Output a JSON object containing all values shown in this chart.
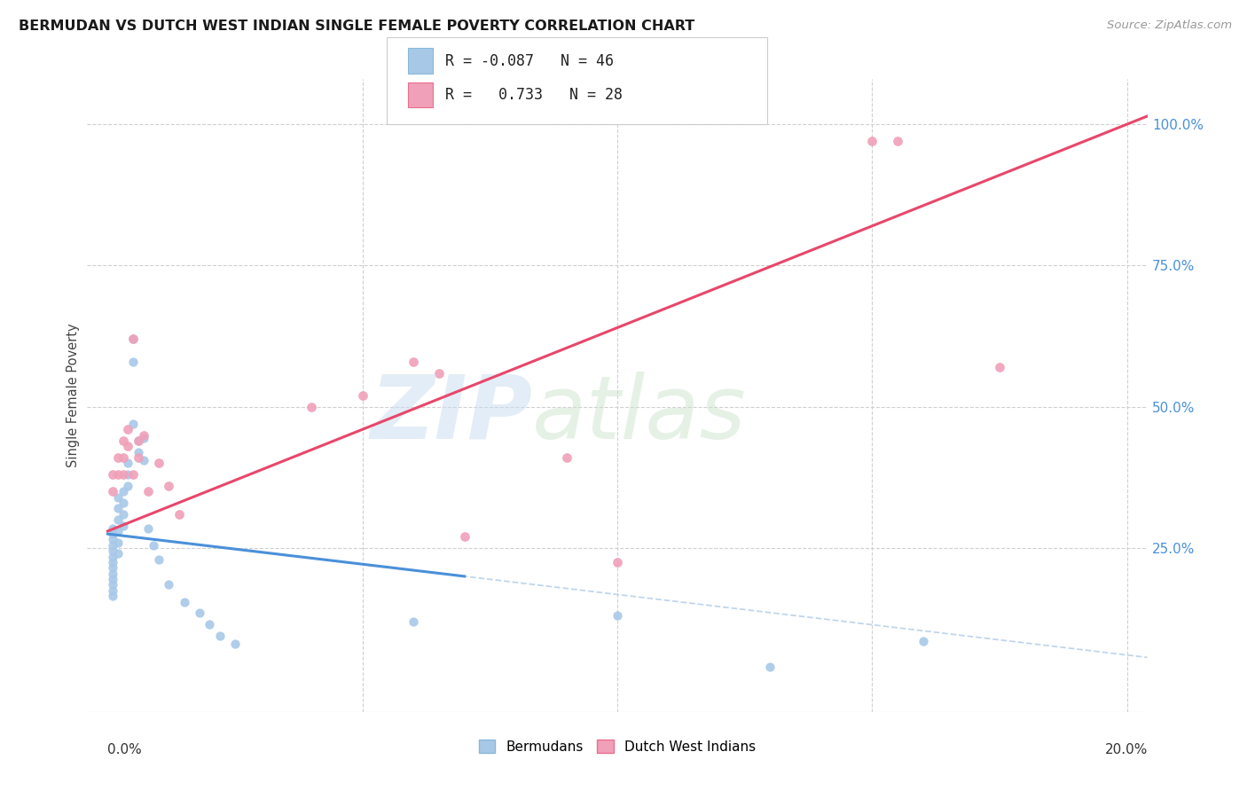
{
  "title": "BERMUDAN VS DUTCH WEST INDIAN SINGLE FEMALE POVERTY CORRELATION CHART",
  "source": "Source: ZipAtlas.com",
  "ylabel": "Single Female Poverty",
  "background_color": "#ffffff",
  "bermudan_scatter_color": "#a8c8e8",
  "dutch_scatter_color": "#f0a0b8",
  "bermudan_line_color": "#4a90d9",
  "dutch_line_color": "#e8476a",
  "bermudan_dash_color": "#b0cce8",
  "grid_color": "#d0d0d0",
  "right_tick_color": "#4a90d9",
  "berm_R": "-0.087",
  "berm_N": "46",
  "dutch_R": "0.733",
  "dutch_N": "28",
  "bermudans_x": [
    0.001,
    0.001,
    0.001,
    0.001,
    0.001,
    0.001,
    0.001,
    0.001,
    0.001,
    0.001,
    0.001,
    0.001,
    0.001,
    0.002,
    0.002,
    0.002,
    0.002,
    0.002,
    0.002,
    0.003,
    0.003,
    0.003,
    0.003,
    0.004,
    0.004,
    0.004,
    0.005,
    0.005,
    0.005,
    0.006,
    0.006,
    0.007,
    0.007,
    0.008,
    0.009,
    0.01,
    0.012,
    0.015,
    0.018,
    0.02,
    0.022,
    0.025,
    0.06,
    0.1,
    0.13,
    0.16
  ],
  "bermudans_y": [
    0.285,
    0.275,
    0.265,
    0.255,
    0.245,
    0.235,
    0.225,
    0.215,
    0.205,
    0.195,
    0.185,
    0.175,
    0.165,
    0.34,
    0.32,
    0.3,
    0.28,
    0.26,
    0.24,
    0.35,
    0.33,
    0.31,
    0.29,
    0.4,
    0.38,
    0.36,
    0.62,
    0.58,
    0.47,
    0.44,
    0.42,
    0.445,
    0.405,
    0.285,
    0.255,
    0.23,
    0.185,
    0.155,
    0.135,
    0.115,
    0.095,
    0.08,
    0.12,
    0.13,
    0.04,
    0.085
  ],
  "dutch_x": [
    0.001,
    0.001,
    0.002,
    0.002,
    0.003,
    0.003,
    0.003,
    0.004,
    0.004,
    0.005,
    0.005,
    0.006,
    0.006,
    0.007,
    0.008,
    0.01,
    0.012,
    0.014,
    0.04,
    0.05,
    0.06,
    0.065,
    0.07,
    0.09,
    0.1,
    0.15,
    0.155,
    0.175
  ],
  "dutch_y": [
    0.38,
    0.35,
    0.41,
    0.38,
    0.44,
    0.41,
    0.38,
    0.46,
    0.43,
    0.62,
    0.38,
    0.44,
    0.41,
    0.45,
    0.35,
    0.4,
    0.36,
    0.31,
    0.5,
    0.52,
    0.58,
    0.56,
    0.27,
    0.41,
    0.225,
    0.97,
    0.97,
    0.57
  ],
  "berm_line_x0": 0.0,
  "berm_line_x1": 0.2,
  "dutch_line_x0": 0.0,
  "dutch_line_x1": 0.2,
  "xlim": [
    -0.004,
    0.204
  ],
  "ylim": [
    -0.04,
    1.08
  ],
  "xgrid": [
    0.05,
    0.1,
    0.15,
    0.2
  ],
  "ygrid": [
    0.25,
    0.5,
    0.75,
    1.0
  ],
  "ytick_labels": [
    "25.0%",
    "50.0%",
    "75.0%",
    "100.0%"
  ],
  "ytick_vals": [
    0.25,
    0.5,
    0.75,
    1.0
  ]
}
